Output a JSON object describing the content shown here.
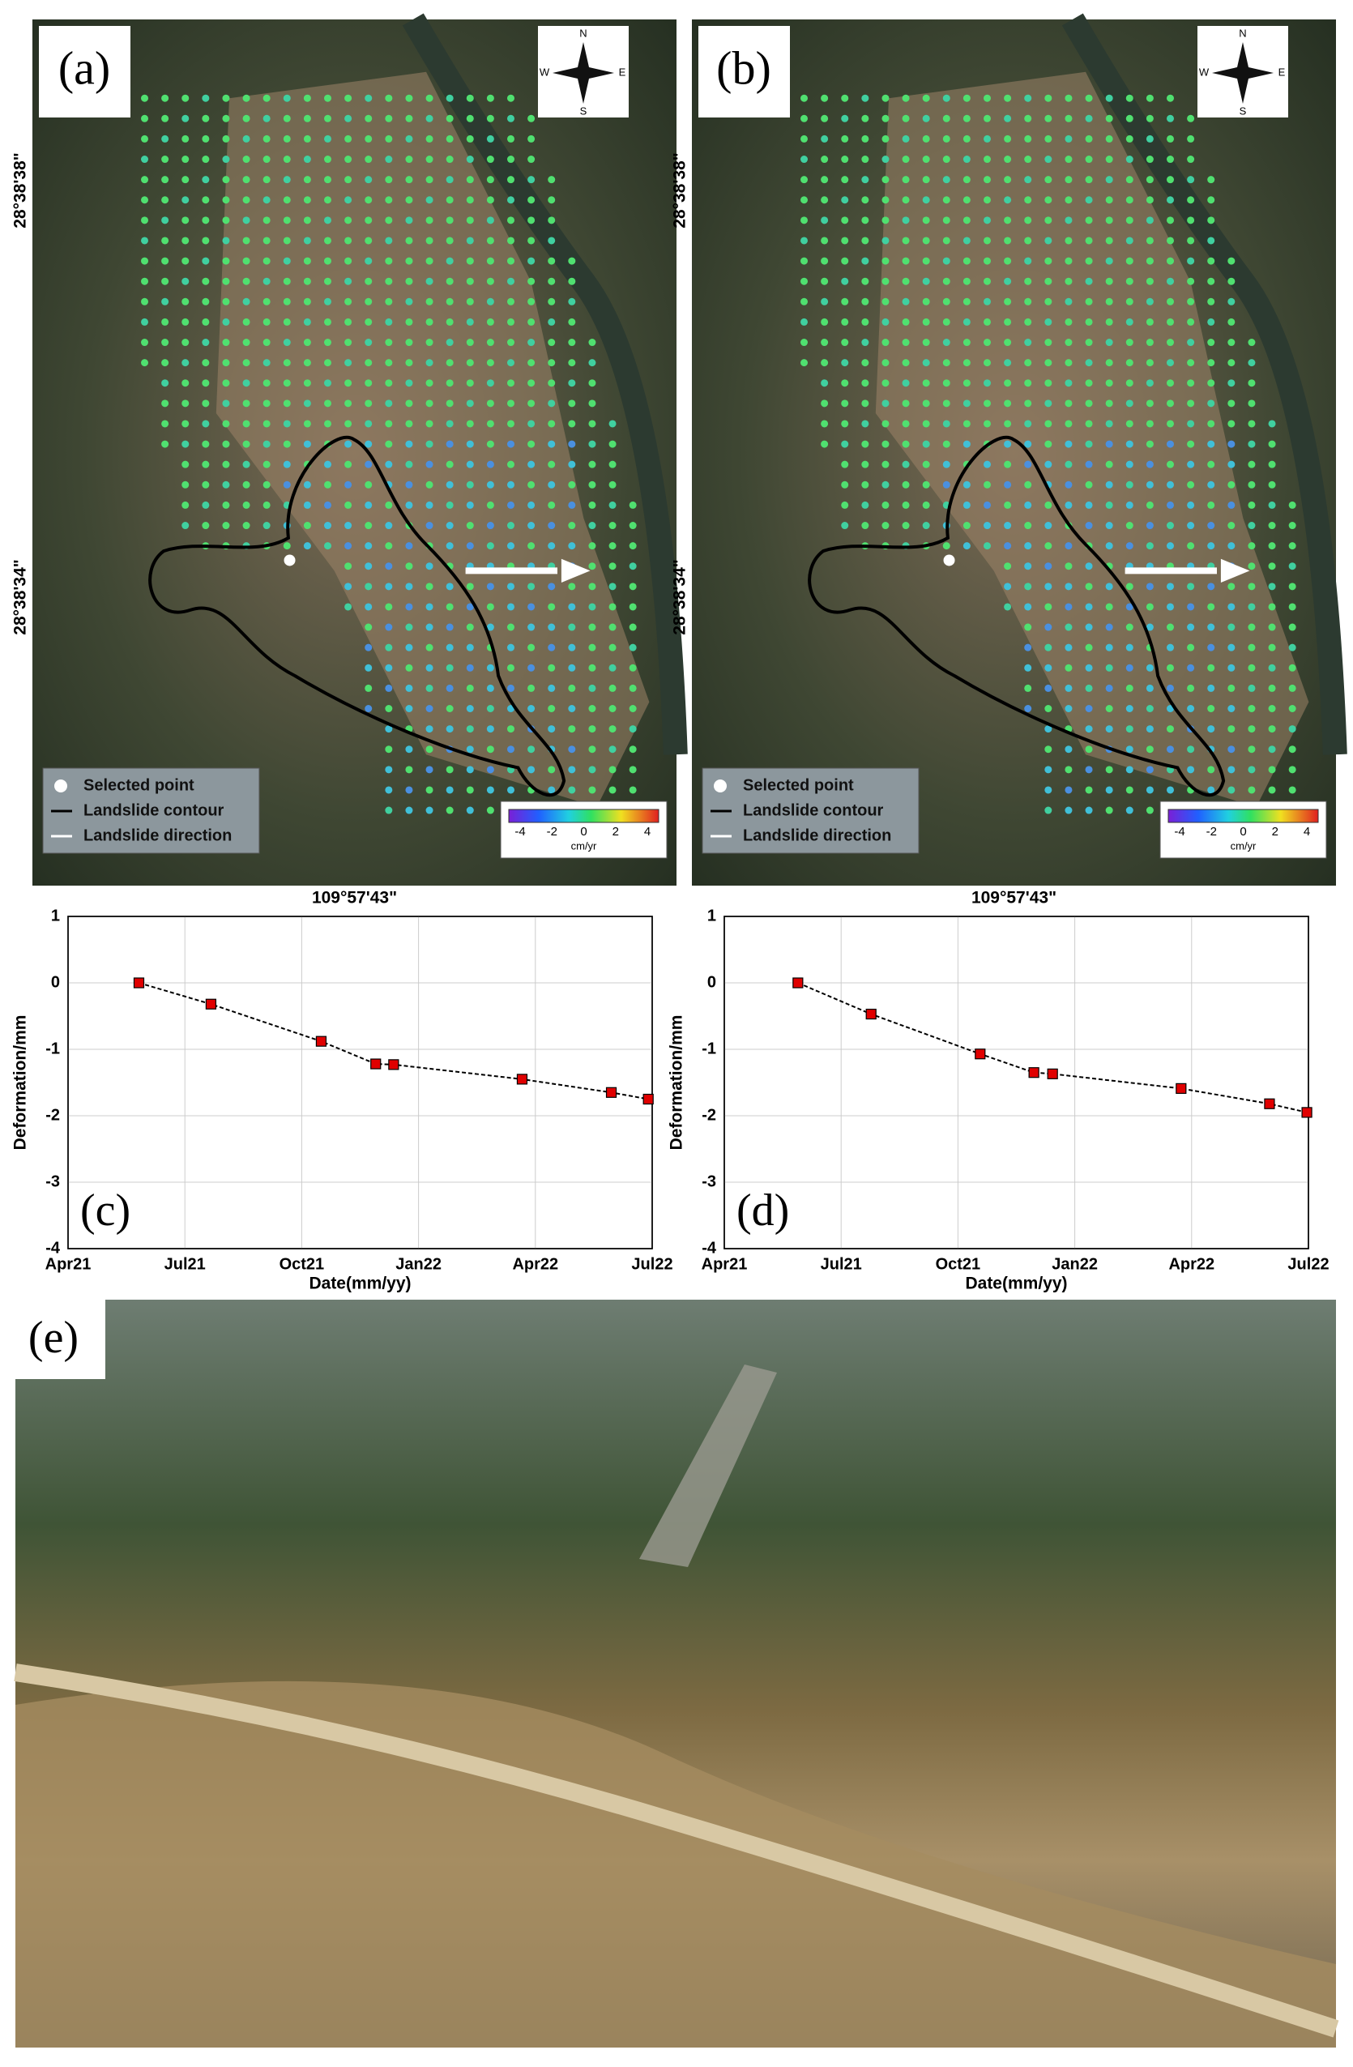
{
  "maps": [
    {
      "label": "(a)",
      "lat_labels": [
        "28°38'38\"",
        "28°38'34\""
      ],
      "lon_label": "109°57'43\""
    },
    {
      "label": "(b)",
      "lat_labels": [
        "28°38'38\"",
        "28°38'34\""
      ],
      "lon_label": "109°57'43\""
    }
  ],
  "compass": {
    "n": "N",
    "s": "S",
    "e": "E",
    "w": "W"
  },
  "map_legend": {
    "items": [
      "Selected point",
      "Landslide contour",
      "Landslide direction"
    ],
    "colorbar_lim": [
      -4,
      4
    ],
    "colorbar_ticks": [
      -4,
      -2,
      0,
      2,
      4
    ],
    "colorbar_unit": "cm/yr"
  },
  "photo": {
    "label": "(e)"
  },
  "chart_data": [
    {
      "type": "line",
      "panel_label": "(c)",
      "x_label": "Date(mm/yy)",
      "y_label": "Deformation/mm",
      "x": [
        1.82,
        3.67,
        6.5,
        7.9,
        8.36,
        11.66,
        13.95,
        14.9
      ],
      "series": [
        {
          "color": "#e00000",
          "values": [
            0,
            -0.32,
            -0.88,
            -1.22,
            -1.23,
            -1.45,
            -1.65,
            -1.75
          ]
        }
      ],
      "xlim": [
        0,
        15
      ],
      "xticks": [
        {
          "value": 0,
          "label": "Apr21"
        },
        {
          "value": 3,
          "label": "Jul21"
        },
        {
          "value": 6,
          "label": "Oct21"
        },
        {
          "value": 9,
          "label": "Jan22"
        },
        {
          "value": 12,
          "label": "Apr22"
        },
        {
          "value": 15,
          "label": "Jul22"
        }
      ],
      "ylim": [
        -4,
        1
      ],
      "yticks": [
        -4,
        -3,
        -2,
        -1,
        0,
        1
      ],
      "grid": true
    },
    {
      "type": "line",
      "panel_label": "(d)",
      "x_label": "Date(mm/yy)",
      "y_label": "Deformation/mm",
      "x": [
        1.89,
        3.77,
        6.57,
        7.95,
        8.43,
        11.73,
        14.0,
        14.96
      ],
      "series": [
        {
          "color": "#e00000",
          "values": [
            0,
            -0.47,
            -1.07,
            -1.35,
            -1.37,
            -1.59,
            -1.82,
            -1.95
          ]
        }
      ],
      "xlim": [
        0,
        15
      ],
      "xticks": [
        {
          "value": 0,
          "label": "Apr21"
        },
        {
          "value": 3,
          "label": "Jul21"
        },
        {
          "value": 6,
          "label": "Oct21"
        },
        {
          "value": 9,
          "label": "Jan22"
        },
        {
          "value": 12,
          "label": "Apr22"
        },
        {
          "value": 15,
          "label": "Jul22"
        }
      ],
      "ylim": [
        -4,
        1
      ],
      "yticks": [
        -4,
        -3,
        -2,
        -1,
        0,
        1
      ],
      "grid": true
    }
  ]
}
